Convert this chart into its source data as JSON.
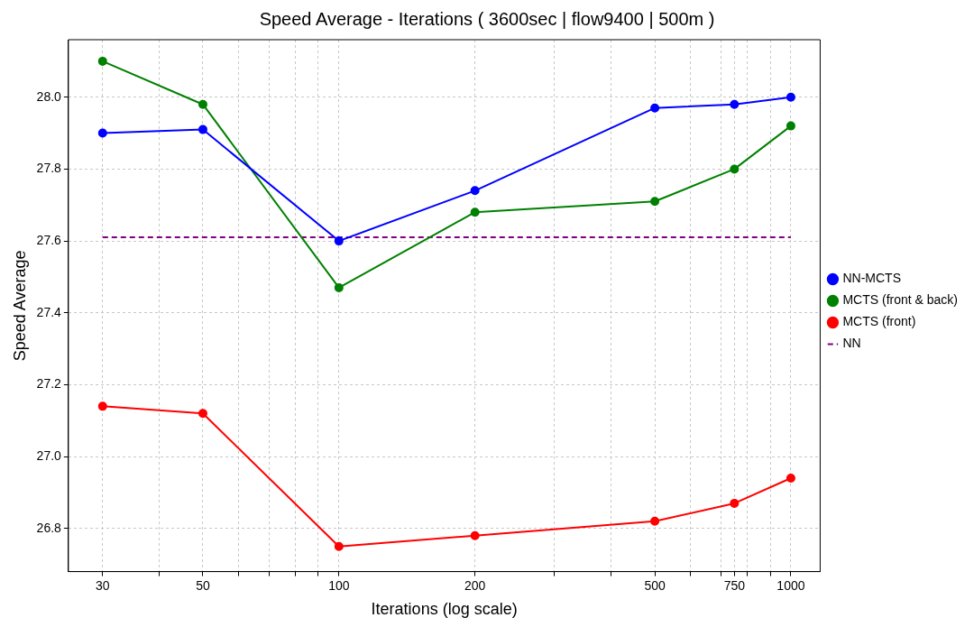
{
  "chart_data": {
    "type": "line",
    "title": "Speed Average - Iterations ( 3600sec | flow9400 | 500m )",
    "xlabel": "Iterations (log scale)",
    "ylabel": "Speed Average",
    "x": [
      30,
      50,
      100,
      200,
      500,
      750,
      1000
    ],
    "series": [
      {
        "name": "NN-MCTS",
        "color": "#0000ff",
        "values": [
          27.9,
          27.91,
          27.6,
          27.74,
          27.97,
          27.98,
          28.0
        ]
      },
      {
        "name": "MCTS (front & back)",
        "color": "#008000",
        "values": [
          28.1,
          27.98,
          27.47,
          27.68,
          27.71,
          27.8,
          27.92
        ]
      },
      {
        "name": "MCTS (front)",
        "color": "#ff0000",
        "values": [
          27.14,
          27.12,
          26.75,
          26.78,
          26.82,
          26.87,
          26.94
        ]
      },
      {
        "name": "NN",
        "color": "#800080",
        "x": [
          30,
          1000
        ],
        "values": [
          27.61,
          27.61
        ],
        "marker": "none",
        "line_style": "dashed"
      }
    ],
    "log": "x",
    "xlim": [
      25.2,
      1161
    ],
    "ylim": [
      26.68,
      28.16
    ],
    "xticks": [
      30,
      {
        "value": 40,
        "label": null
      },
      50,
      {
        "value": 60,
        "label": null
      },
      {
        "value": 70,
        "label": null
      },
      {
        "value": 80,
        "label": null
      },
      {
        "value": 90,
        "label": null
      },
      100,
      200,
      {
        "value": 300,
        "label": null
      },
      {
        "value": 400,
        "label": null
      },
      500,
      {
        "value": 600,
        "label": null
      },
      {
        "value": 700,
        "label": null
      },
      750,
      {
        "value": 800,
        "label": null
      },
      {
        "value": 900,
        "label": null
      },
      1000
    ],
    "yticks": [
      26.8,
      {
        "value": 27,
        "label": "27.0"
      },
      27.2,
      27.4,
      27.6,
      27.8,
      {
        "value": 28,
        "label": "28.0"
      }
    ],
    "grid": true,
    "legend": "right",
    "marker": "circle",
    "line_style": "solid"
  }
}
